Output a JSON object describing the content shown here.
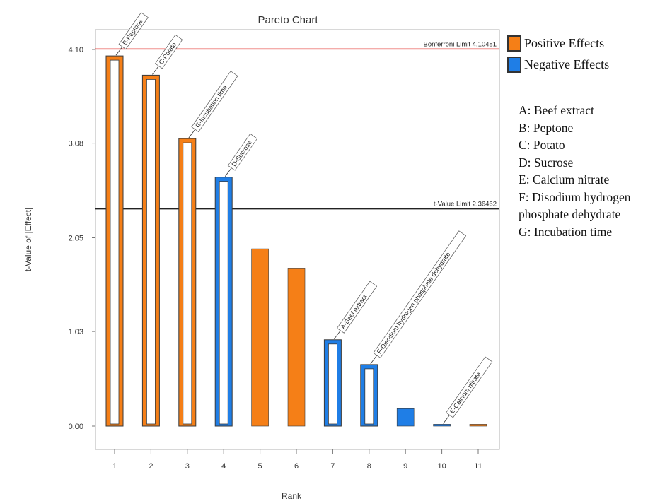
{
  "chart_data": {
    "type": "bar",
    "title": "Pareto Chart",
    "xlabel": "Rank",
    "ylabel": "t-Value of |Effect|",
    "categories": [
      "1",
      "2",
      "3",
      "4",
      "5",
      "6",
      "7",
      "8",
      "9",
      "10",
      "11"
    ],
    "values": [
      4.03,
      3.82,
      3.13,
      2.71,
      1.93,
      1.72,
      0.94,
      0.67,
      0.19,
      0.02,
      0.02
    ],
    "effect_sign": [
      "positive",
      "positive",
      "positive",
      "negative",
      "positive",
      "positive",
      "negative",
      "negative",
      "negative",
      "negative",
      "positive"
    ],
    "bar_style": [
      "outlined",
      "outlined",
      "outlined",
      "outlined",
      "filled",
      "filled",
      "outlined",
      "outlined",
      "filled",
      "filled",
      "filled"
    ],
    "bar_labels": [
      "B-Peptone",
      "C-Potato",
      "G-Incubation time",
      "D-Sucrose",
      "",
      "",
      "A-Beef extract",
      "F-Disodium hydrogen phosphate dehydrate",
      "",
      "E-Calcium nitrate",
      ""
    ],
    "yticks": [
      "0.00",
      "1.03",
      "2.05",
      "3.08",
      "4.10"
    ],
    "ylim": [
      0,
      4.5
    ],
    "reference_lines": [
      {
        "label": "Bonferroni Limit 4.10481",
        "value": 4.10481,
        "color": "#e0201c"
      },
      {
        "label": "t-Value Limit 2.36462",
        "value": 2.36462,
        "color": "#222222"
      }
    ],
    "grid": false,
    "legend_position": "right",
    "colors": {
      "positive": "#f57f17",
      "negative": "#1f7ee6"
    }
  },
  "legend": {
    "positive_label": "Positive Effects",
    "negative_label": "Negative Effects",
    "factors": [
      "A: Beef extract",
      "B: Peptone",
      "C: Potato",
      "D: Sucrose",
      "E: Calcium nitrate",
      "F: Disodium hydrogen",
      "phosphate dehydrate",
      "G: Incubation time"
    ]
  }
}
